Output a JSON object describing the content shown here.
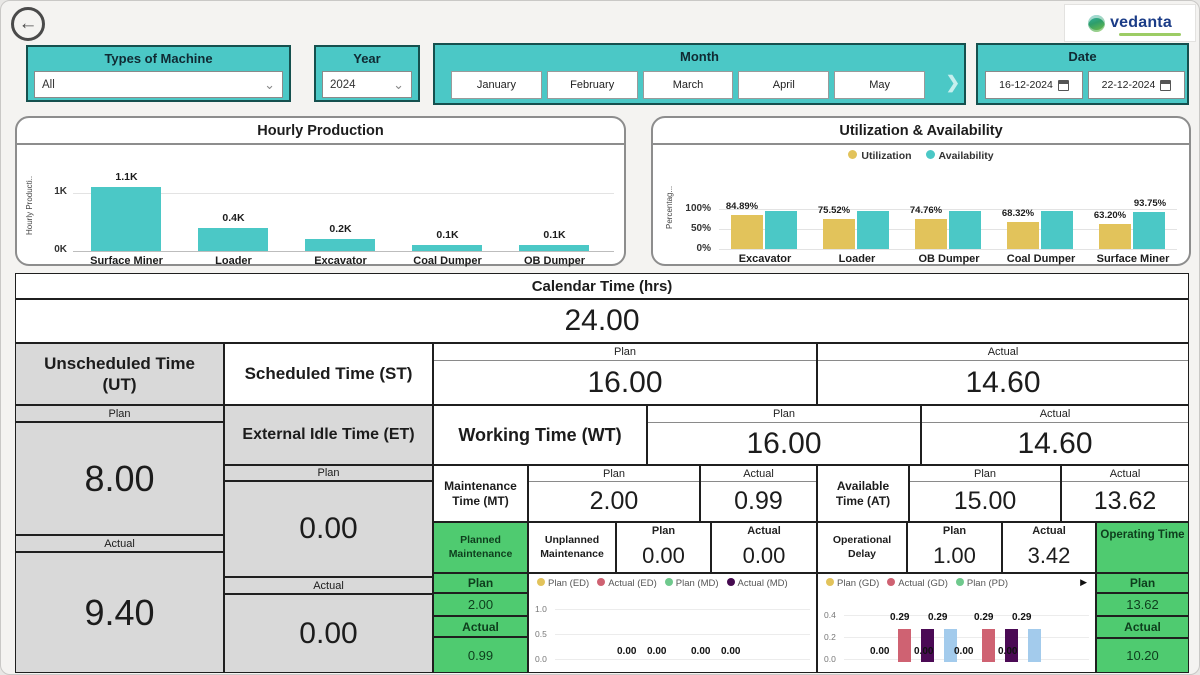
{
  "icons": {
    "back": "←",
    "chevron_down": "⌄",
    "chevron_right": "❯",
    "legend_more": "▶"
  },
  "logo": {
    "text": "vedanta"
  },
  "filters": {
    "types_of_machine": {
      "label": "Types of Machine",
      "value": "All"
    },
    "year": {
      "label": "Year",
      "value": "2024"
    },
    "month": {
      "label": "Month",
      "options": [
        "January",
        "February",
        "March",
        "April",
        "May"
      ]
    },
    "date": {
      "label": "Date",
      "from": "16-12-2024",
      "to": "22-12-2024"
    }
  },
  "chart_data": [
    {
      "type": "bar",
      "title": "Hourly Production",
      "ylabel": "Hourly Producti..",
      "yticks": [
        "1K",
        "0K"
      ],
      "ylim": [
        0,
        1200
      ],
      "categories": [
        "Surface Miner",
        "Loader",
        "Excavator",
        "Coal Dumper",
        "OB Dumper"
      ],
      "values": [
        1100,
        400,
        200,
        100,
        100
      ],
      "labels": [
        "1.1K",
        "0.4K",
        "0.2K",
        "0.1K",
        "0.1K"
      ],
      "bar_color": "#4bc8c6",
      "legend_position": "none",
      "grid": true
    },
    {
      "type": "bar",
      "title": "Utilization & Availability",
      "ylabel": "Percentag...",
      "yticks": [
        "100%",
        "50%",
        "0%"
      ],
      "ylim": [
        0,
        110
      ],
      "categories": [
        "Excavator",
        "Loader",
        "OB Dumper",
        "Coal Dumper",
        "Surface Miner"
      ],
      "series": [
        {
          "name": "Utilization",
          "color": "#e2c35b",
          "values": [
            84.89,
            75.52,
            74.76,
            68.32,
            63.2
          ],
          "labels": [
            "84.89%",
            "75.52%",
            "74.76%",
            "68.32%",
            "63.20%"
          ]
        },
        {
          "name": "Availability",
          "color": "#4bc8c6",
          "values": [
            96,
            96,
            96,
            96,
            93.75
          ],
          "labels": [
            "",
            "",
            "",
            "",
            "93.75%"
          ]
        }
      ],
      "legend_position": "top",
      "grid": true
    },
    {
      "type": "bar",
      "title": "",
      "legend": [
        {
          "name": "Plan (ED)",
          "color": "#e2c35b"
        },
        {
          "name": "Actual (ED)",
          "color": "#cf6272"
        },
        {
          "name": "Plan (MD)",
          "color": "#6fc98d"
        },
        {
          "name": "Actual (MD)",
          "color": "#45094f"
        }
      ],
      "yticks": [
        "1.0",
        "0.5",
        "0.0"
      ],
      "ylim": [
        0,
        1.0
      ],
      "values": [
        0,
        0,
        0,
        0
      ],
      "value_labels": [
        "0.00",
        "0.00",
        "0.00",
        "0.00"
      ],
      "grid": true
    },
    {
      "type": "bar",
      "title": "",
      "legend": [
        {
          "name": "Plan (GD)",
          "color": "#e2c35b"
        },
        {
          "name": "Actual (GD)",
          "color": "#cf6272"
        },
        {
          "name": "Plan (PD)",
          "color": "#6fc98d"
        }
      ],
      "yticks": [
        "0.4",
        "0.2",
        "0.0"
      ],
      "ylim": [
        0,
        0.4
      ],
      "groups": [
        {
          "top_labels": [
            "0.29",
            "0.29"
          ],
          "bottom_labels": [
            "0.00",
            "0.00"
          ],
          "bars": [
            {
              "color": "#cf6272",
              "value": 0.29
            },
            {
              "color": "#4b0a55",
              "value": 0.29
            },
            {
              "color": "#a3cbec",
              "value": 0.29
            }
          ]
        },
        {
          "top_labels": [
            "0.29",
            "0.29"
          ],
          "bottom_labels": [
            "0.00",
            "0.00"
          ],
          "bars": [
            {
              "color": "#cf6272",
              "value": 0.29
            },
            {
              "color": "#4b0a55",
              "value": 0.29
            },
            {
              "color": "#a3cbec",
              "value": 0.29
            }
          ]
        }
      ],
      "grid": true
    }
  ],
  "table": {
    "plan_label": "Plan",
    "actual_label": "Actual",
    "calendar": {
      "label": "Calendar Time (hrs)",
      "value": "24.00"
    },
    "ut": {
      "label": "Unscheduled Time (UT)",
      "plan": "8.00",
      "actual": "9.40"
    },
    "st": {
      "label": "Scheduled Time (ST)",
      "plan": "16.00",
      "actual": "14.60"
    },
    "et": {
      "label": "External Idle Time (ET)",
      "plan": "0.00",
      "actual": "0.00"
    },
    "wt": {
      "label": "Working Time (WT)",
      "plan": "16.00",
      "actual": "14.60"
    },
    "mt": {
      "label": "Maintenance Time (MT)",
      "plan": "2.00",
      "actual": "0.99"
    },
    "at": {
      "label": "Available Time (AT)",
      "plan": "15.00",
      "actual": "13.62"
    },
    "pm": {
      "label": "Planned Maintenance",
      "plan": "2.00",
      "actual": "0.99"
    },
    "um": {
      "label": "Unplanned Maintenance",
      "plan": "0.00",
      "actual": "0.00"
    },
    "od": {
      "label": "Operational Delay",
      "plan": "1.00",
      "actual": "3.42"
    },
    "ot": {
      "label": "Operating Time",
      "plan": "13.62",
      "actual": "10.20"
    }
  }
}
